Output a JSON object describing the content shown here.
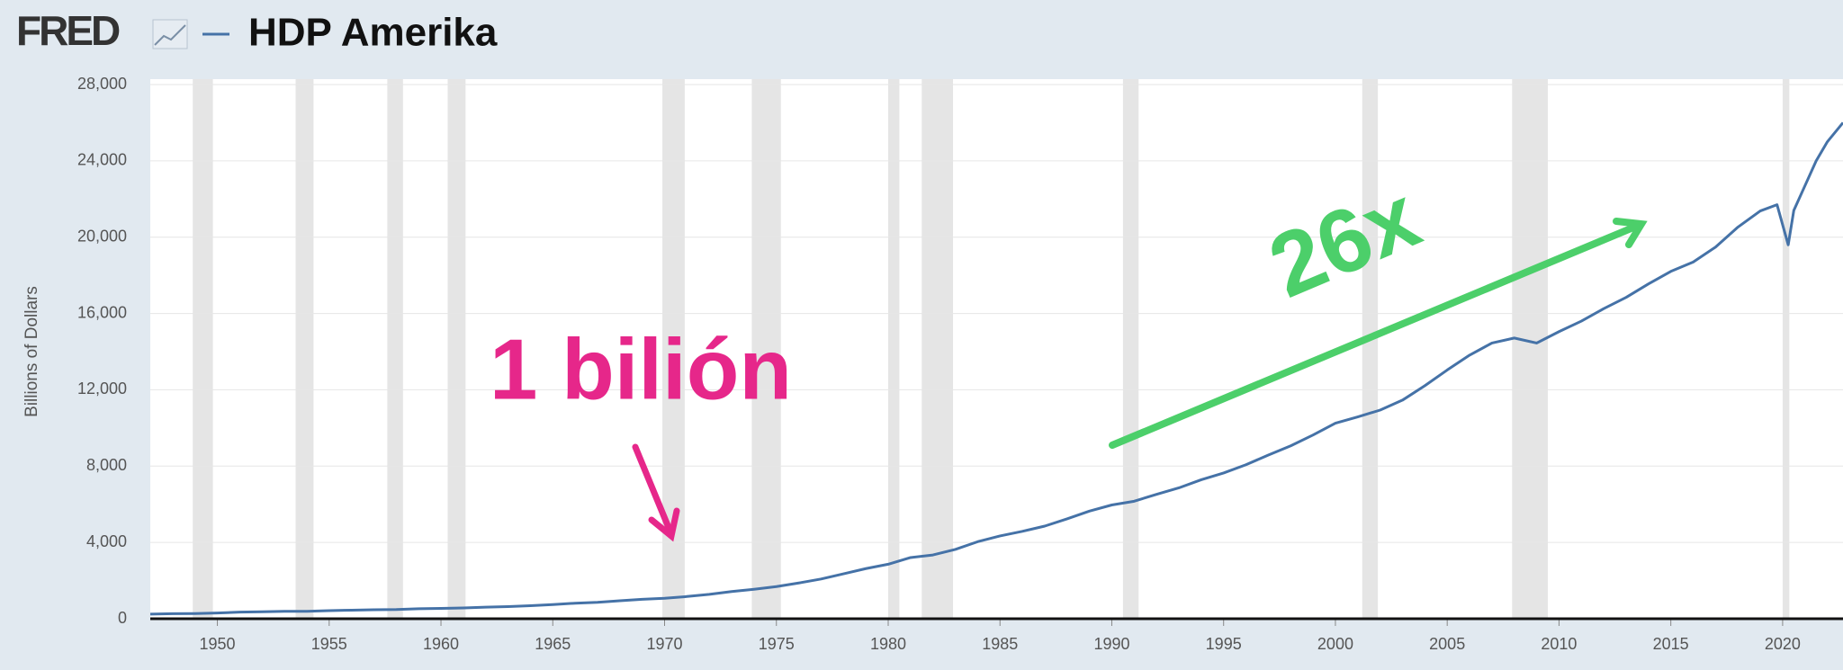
{
  "chart_data": {
    "type": "line",
    "logo": "FRED",
    "y_label": "Billions of Dollars",
    "annotations": [
      "1 bilión",
      "26x"
    ],
    "x": [
      1947,
      1948,
      1949,
      1950,
      1951,
      1952,
      1953,
      1954,
      1955,
      1956,
      1957,
      1958,
      1959,
      1960,
      1961,
      1962,
      1963,
      1964,
      1965,
      1966,
      1967,
      1968,
      1969,
      1970,
      1971,
      1972,
      1973,
      1974,
      1975,
      1976,
      1977,
      1978,
      1979,
      1980,
      1981,
      1982,
      1983,
      1984,
      1985,
      1986,
      1987,
      1988,
      1989,
      1990,
      1991,
      1992,
      1993,
      1994,
      1995,
      1996,
      1997,
      1998,
      1999,
      2000,
      2001,
      2002,
      2003,
      2004,
      2005,
      2006,
      2007,
      2008,
      2009,
      2010,
      2011,
      2012,
      2013,
      2014,
      2015,
      2016,
      2017,
      2018,
      2019,
      2019.75,
      2020.25,
      2020.5,
      2021,
      2021.5,
      2022,
      2022.7
    ],
    "series": [
      {
        "name": "HDP Amerika",
        "color": "#4572a7",
        "values": [
          243,
          265,
          272,
          300,
          347,
          367,
          389,
          391,
          426,
          450,
          474,
          482,
          522,
          543,
          563,
          605,
          638,
          686,
          744,
          815,
          862,
          943,
          1019,
          1073,
          1165,
          1280,
          1425,
          1545,
          1684,
          1873,
          2082,
          2352,
          2627,
          2857,
          3207,
          3343,
          3634,
          4037,
          4339,
          4580,
          4855,
          5236,
          5642,
          5963,
          6158,
          6520,
          6859,
          7287,
          7640,
          8073,
          8578,
          9063,
          9631,
          10251,
          10582,
          10936,
          11458,
          12214,
          13037,
          13815,
          14452,
          14713,
          14449,
          15049,
          15600,
          16254,
          16843,
          17551,
          18206,
          18695,
          19480,
          20527,
          21373,
          21700,
          19600,
          21400,
          22700,
          24000,
          25000,
          26000
        ]
      }
    ],
    "recessions": [
      [
        1948.9,
        1949.8
      ],
      [
        1953.5,
        1954.3
      ],
      [
        1957.6,
        1958.3
      ],
      [
        1960.3,
        1961.1
      ],
      [
        1969.9,
        1970.9
      ],
      [
        1973.9,
        1975.2
      ],
      [
        1980.0,
        1980.5
      ],
      [
        1981.5,
        1982.9
      ],
      [
        1990.5,
        1991.2
      ],
      [
        2001.2,
        2001.9
      ],
      [
        2007.9,
        2009.5
      ],
      [
        2020.0,
        2020.3
      ]
    ],
    "xlim": [
      1947,
      2022.7
    ],
    "xticks": [
      1950,
      1955,
      1960,
      1965,
      1970,
      1975,
      1980,
      1985,
      1990,
      1995,
      2000,
      2005,
      2010,
      2015,
      2020
    ],
    "ylim": [
      0,
      28000
    ],
    "yticks": [
      0,
      {
        "value": 4000,
        "label": "4,000"
      },
      {
        "value": 8000,
        "label": "8,000"
      },
      {
        "value": 12000,
        "label": "12,000"
      },
      {
        "value": 16000,
        "label": "16,000"
      },
      {
        "value": 20000,
        "label": "20,000"
      },
      {
        "value": 24000,
        "label": "24,000"
      },
      {
        "value": 28000,
        "label": "28,000"
      }
    ],
    "grid": true
  }
}
